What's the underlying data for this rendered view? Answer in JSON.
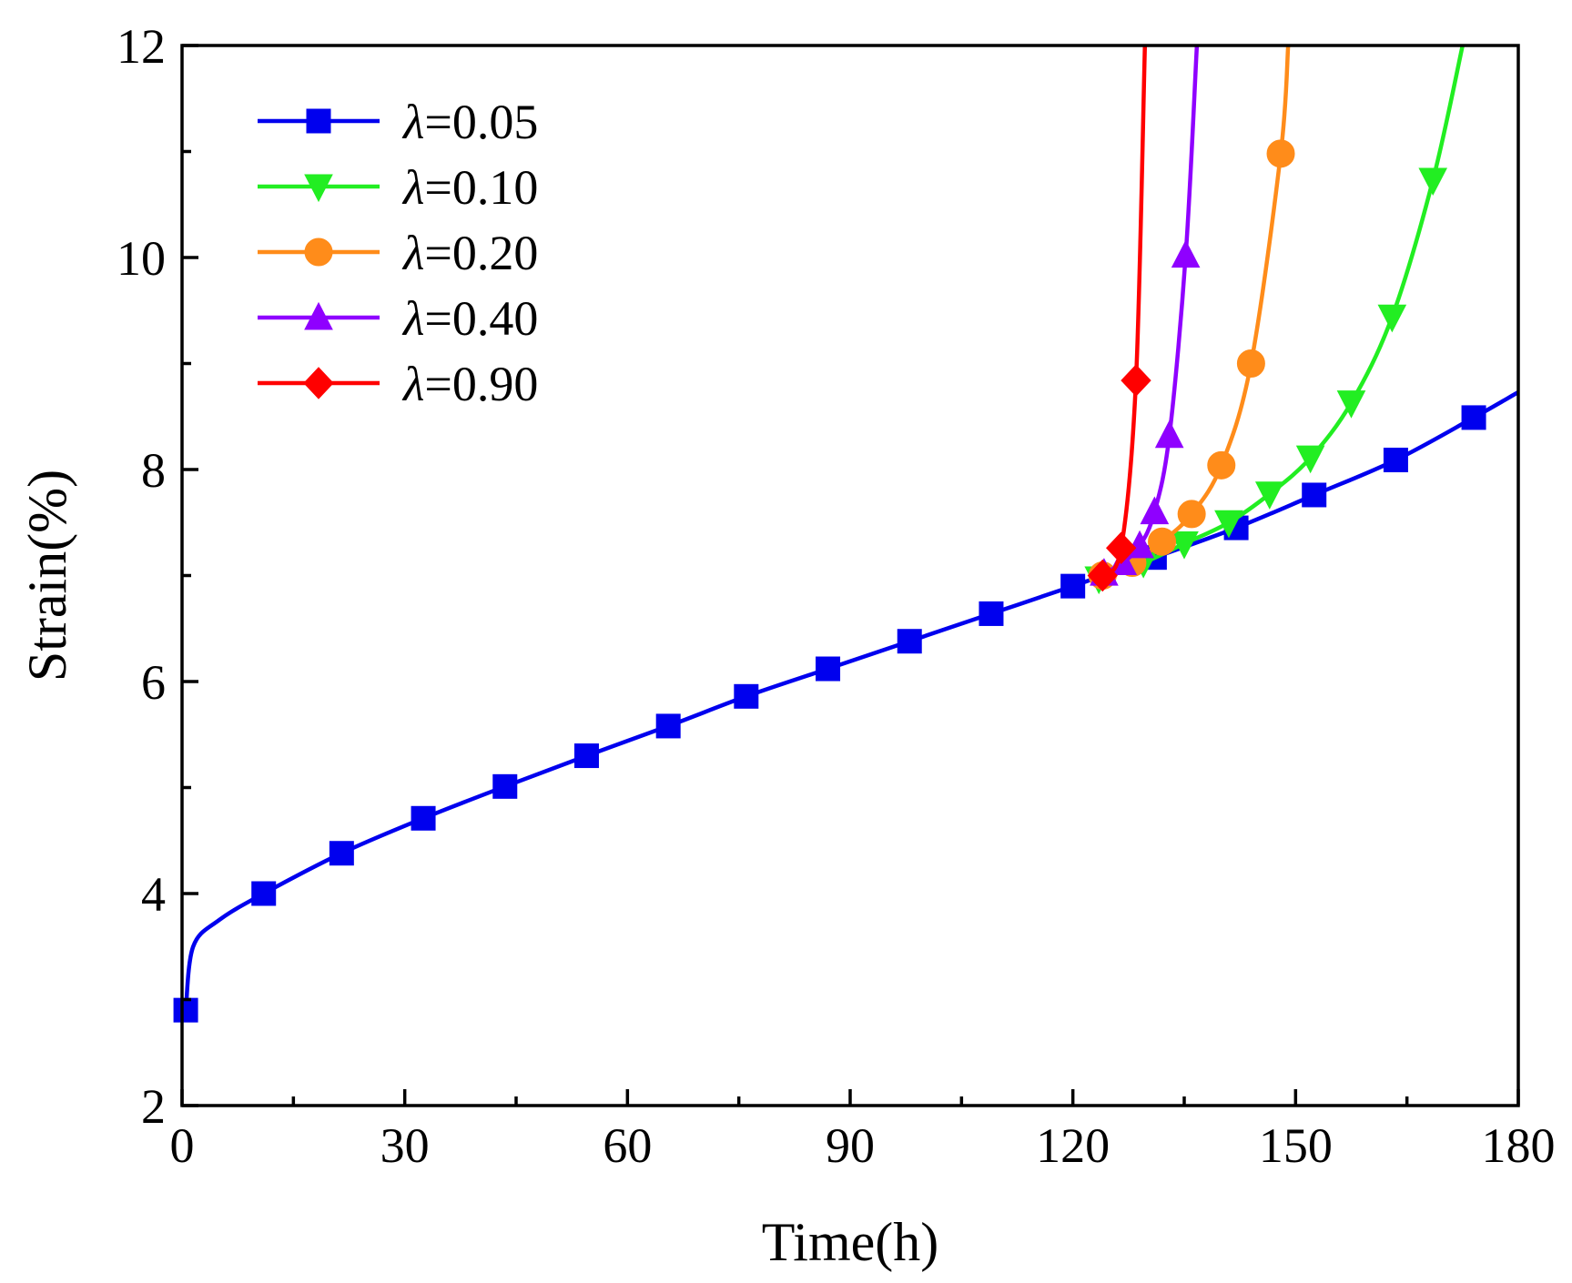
{
  "chart_data": {
    "type": "line",
    "title": "",
    "xlabel": "Time(h)",
    "ylabel": "Strain(%)",
    "xlim": [
      0,
      180
    ],
    "ylim": [
      2,
      12
    ],
    "xticks": [
      0,
      30,
      60,
      90,
      120,
      150,
      180
    ],
    "yticks": [
      2,
      4,
      6,
      8,
      10,
      12
    ],
    "grid": false,
    "legend_position": "top-left",
    "series": [
      {
        "name": "λ=0.05",
        "label_symbol": "λ",
        "label_value": "=0.05",
        "color": "#0000ee",
        "marker": "square",
        "x": [
          0.5,
          1.5,
          5,
          11,
          21.5,
          32.5,
          43.5,
          54.5,
          65.5,
          76,
          87,
          98,
          109,
          120,
          131,
          142,
          152.5,
          163.5,
          174,
          180
        ],
        "y": [
          2.9,
          3.5,
          3.75,
          4.0,
          4.38,
          4.71,
          5.01,
          5.3,
          5.58,
          5.86,
          6.12,
          6.38,
          6.64,
          6.9,
          7.17,
          7.45,
          7.76,
          8.09,
          8.49,
          8.73
        ],
        "markers_x": [
          0.5,
          11,
          21.5,
          32.5,
          43.5,
          54.5,
          65.5,
          76,
          87,
          98,
          109,
          120,
          131,
          142,
          152.5,
          163.5,
          174
        ],
        "markers_y": [
          2.9,
          4.0,
          4.38,
          4.71,
          5.01,
          5.3,
          5.58,
          5.86,
          6.12,
          6.38,
          6.64,
          6.9,
          7.17,
          7.45,
          7.76,
          8.09,
          8.49
        ]
      },
      {
        "name": "λ=0.10",
        "label_symbol": "λ",
        "label_value": "=0.10",
        "color": "#22ee22",
        "marker": "triangle-down",
        "x": [
          123.5,
          129.5,
          135,
          141,
          146.5,
          152,
          157.5,
          163,
          168.5,
          172.5
        ],
        "y": [
          6.97,
          7.12,
          7.3,
          7.5,
          7.77,
          8.11,
          8.63,
          9.44,
          10.73,
          12.0
        ],
        "markers_x": [
          123.5,
          129.5,
          135,
          141,
          146.5,
          152,
          157.5,
          163,
          168.5
        ],
        "markers_y": [
          6.97,
          7.12,
          7.3,
          7.5,
          7.77,
          8.11,
          8.63,
          9.44,
          10.73
        ]
      },
      {
        "name": "λ=0.20",
        "label_symbol": "λ",
        "label_value": "=0.20",
        "color": "#ff8c1a",
        "marker": "circle",
        "x": [
          124,
          128,
          132,
          136,
          140,
          144,
          148,
          149
        ],
        "y": [
          7.0,
          7.12,
          7.32,
          7.58,
          8.04,
          9.0,
          10.98,
          12.0
        ],
        "markers_x": [
          124,
          128,
          132,
          136,
          140,
          144,
          148
        ],
        "markers_y": [
          7.0,
          7.12,
          7.32,
          7.58,
          8.04,
          9.0,
          10.98
        ]
      },
      {
        "name": "λ=0.40",
        "label_symbol": "λ",
        "label_value": "=0.40",
        "color": "#8f00ff",
        "marker": "triangle-up",
        "x": [
          124.2,
          126.7,
          129,
          131,
          133,
          135.2,
          136.7
        ],
        "y": [
          7.02,
          7.12,
          7.28,
          7.6,
          8.32,
          10.02,
          12.0
        ],
        "markers_x": [
          124.2,
          126.7,
          129,
          131,
          133,
          135.2
        ],
        "markers_y": [
          7.02,
          7.12,
          7.28,
          7.6,
          8.32,
          10.02
        ]
      },
      {
        "name": "λ=0.90",
        "label_symbol": "λ",
        "label_value": "=0.90",
        "color": "#ff0000",
        "marker": "diamond",
        "x": [
          124,
          126.5,
          128.5,
          129.7
        ],
        "y": [
          7.0,
          7.26,
          8.84,
          12.0
        ],
        "markers_x": [
          124,
          126.5,
          128.5
        ],
        "markers_y": [
          7.0,
          7.26,
          8.84
        ]
      }
    ]
  }
}
